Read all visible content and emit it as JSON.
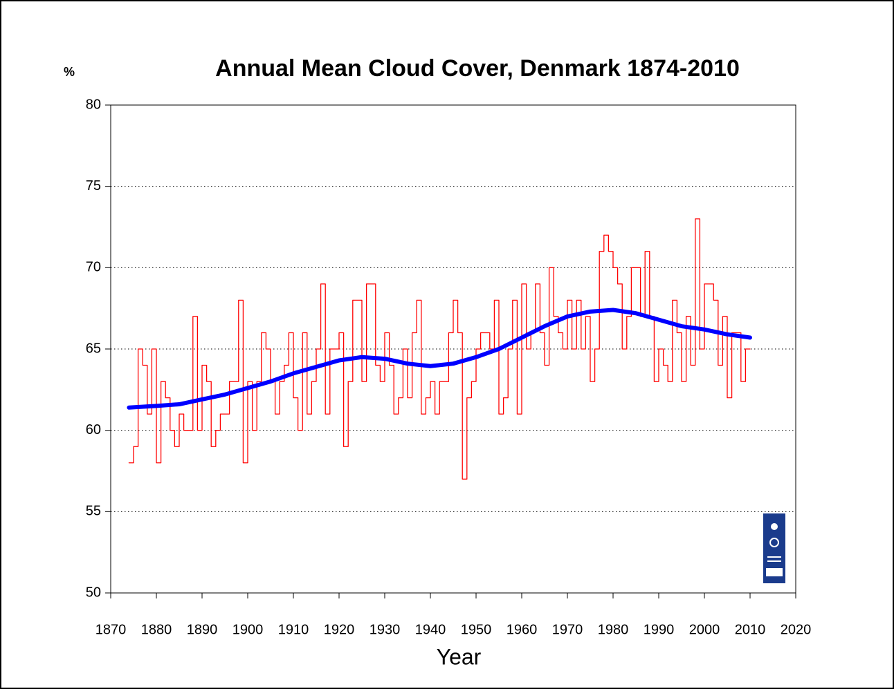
{
  "chart_data": {
    "type": "line",
    "title": "Annual Mean Cloud Cover, Denmark 1874-2010",
    "y_label": "%",
    "x_label": "Year",
    "xlim": [
      1870,
      2020
    ],
    "xticks": [
      1870,
      1880,
      1890,
      1900,
      1910,
      1920,
      1930,
      1940,
      1950,
      1960,
      1970,
      1980,
      1990,
      2000,
      2010,
      2020
    ],
    "ylim": [
      50,
      80
    ],
    "yticks": [
      50,
      55,
      60,
      65,
      70,
      75,
      80
    ],
    "grid": true,
    "series": [
      {
        "color": "#ff0000",
        "step": true,
        "x": [
          1874,
          1875,
          1876,
          1877,
          1878,
          1879,
          1880,
          1881,
          1882,
          1883,
          1884,
          1885,
          1886,
          1887,
          1888,
          1889,
          1890,
          1891,
          1892,
          1893,
          1894,
          1895,
          1896,
          1897,
          1898,
          1899,
          1900,
          1901,
          1902,
          1903,
          1904,
          1905,
          1906,
          1907,
          1908,
          1909,
          1910,
          1911,
          1912,
          1913,
          1914,
          1915,
          1916,
          1917,
          1918,
          1919,
          1920,
          1921,
          1922,
          1923,
          1924,
          1925,
          1926,
          1927,
          1928,
          1929,
          1930,
          1931,
          1932,
          1933,
          1934,
          1935,
          1936,
          1937,
          1938,
          1939,
          1940,
          1941,
          1942,
          1943,
          1944,
          1945,
          1946,
          1947,
          1948,
          1949,
          1950,
          1951,
          1952,
          1953,
          1954,
          1955,
          1956,
          1957,
          1958,
          1959,
          1960,
          1961,
          1962,
          1963,
          1964,
          1965,
          1966,
          1967,
          1968,
          1969,
          1970,
          1971,
          1972,
          1973,
          1974,
          1975,
          1976,
          1977,
          1978,
          1979,
          1980,
          1981,
          1982,
          1983,
          1984,
          1985,
          1986,
          1987,
          1988,
          1989,
          1990,
          1991,
          1992,
          1993,
          1994,
          1995,
          1996,
          1997,
          1998,
          1999,
          2000,
          2001,
          2002,
          2003,
          2004,
          2005,
          2006,
          2007,
          2008,
          2009,
          2010
        ],
        "values": [
          58,
          59,
          65,
          64,
          61,
          65,
          58,
          63,
          62,
          60,
          59,
          61,
          60,
          60,
          67,
          60,
          64,
          63,
          59,
          60,
          61,
          61,
          63,
          63,
          68,
          58,
          63,
          60,
          63,
          66,
          65,
          63,
          61,
          63,
          64,
          66,
          62,
          60,
          66,
          61,
          63,
          65,
          69,
          61,
          65,
          65,
          66,
          59,
          63,
          68,
          68,
          63,
          69,
          69,
          64,
          63,
          66,
          64,
          61,
          62,
          65,
          62,
          66,
          68,
          61,
          62,
          63,
          61,
          63,
          63,
          66,
          68,
          66,
          57,
          62,
          63,
          65,
          66,
          66,
          65,
          68,
          61,
          62,
          65,
          68,
          61,
          69,
          65,
          66,
          69,
          66,
          64,
          70,
          67,
          66,
          65,
          68,
          65,
          68,
          65,
          67,
          63,
          65,
          71,
          72,
          71,
          70,
          69,
          65,
          67,
          70,
          70,
          67,
          71,
          67,
          63,
          65,
          64,
          63,
          68,
          66,
          63,
          67,
          64,
          73,
          65,
          69,
          69,
          68,
          64,
          67,
          62,
          66,
          66,
          63,
          65,
          65
        ]
      },
      {
        "color": "#0000ff",
        "step": false,
        "x": [
          1874,
          1880,
          1885,
          1890,
          1895,
          1900,
          1905,
          1910,
          1915,
          1920,
          1925,
          1930,
          1935,
          1940,
          1945,
          1950,
          1955,
          1960,
          1965,
          1970,
          1975,
          1980,
          1985,
          1990,
          1995,
          2000,
          2005,
          2010
        ],
        "values": [
          61.4,
          61.5,
          61.6,
          61.9,
          62.2,
          62.6,
          63.0,
          63.5,
          63.9,
          64.3,
          64.5,
          64.4,
          64.1,
          63.95,
          64.1,
          64.5,
          65.0,
          65.7,
          66.4,
          67.0,
          67.3,
          67.4,
          67.2,
          66.8,
          66.4,
          66.2,
          65.9,
          65.7
        ]
      }
    ]
  }
}
